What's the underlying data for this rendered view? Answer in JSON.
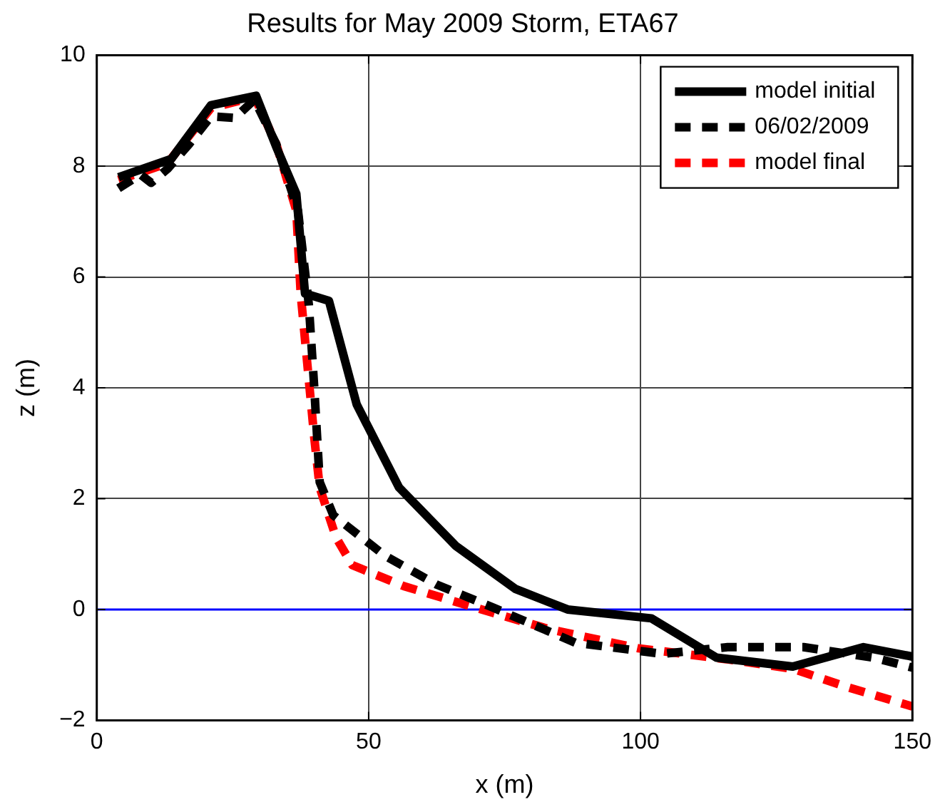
{
  "chart_data": {
    "type": "line",
    "title": "Results for May 2009 Storm, ETA67",
    "xlabel": "x (m)",
    "ylabel": "z (m)",
    "xlim": [
      0,
      150
    ],
    "xticks": [
      0,
      50,
      100,
      150
    ],
    "ylim": [
      -2,
      10
    ],
    "yticks": [
      -2,
      0,
      2,
      4,
      6,
      8,
      10
    ],
    "grid": true,
    "legend": "top right",
    "marker": "none",
    "ref_lines": [
      {
        "axis": "y",
        "value": 0,
        "color": "#0000ff"
      }
    ],
    "series": [
      {
        "name": "model initial",
        "color": "#000000",
        "line_style": "solid",
        "x": [
          4,
          13.7,
          21,
          29.3,
          33,
          36.7,
          38.3,
          42.7,
          47.8,
          55.6,
          66,
          77,
          86.6,
          102,
          114,
          128,
          141,
          150
        ],
        "values": [
          7.8,
          8.13,
          9.1,
          9.27,
          8.35,
          7.5,
          5.7,
          5.57,
          3.7,
          2.2,
          1.15,
          0.37,
          0,
          -0.16,
          -0.87,
          -1.03,
          -0.68,
          -0.85
        ]
      },
      {
        "name": "06/02/2009",
        "color": "#000000",
        "line_style": "dashed",
        "x": [
          4,
          8,
          10,
          13,
          17,
          21,
          25.4,
          29,
          33,
          37,
          39,
          40,
          41,
          43.5,
          53,
          62.5,
          73,
          88,
          104,
          116,
          130,
          143,
          150
        ],
        "values": [
          7.6,
          7.85,
          7.7,
          7.95,
          8.4,
          8.9,
          8.87,
          9.2,
          8.4,
          7.2,
          5.5,
          4,
          2.3,
          1.7,
          0.97,
          0.45,
          0.03,
          -0.6,
          -0.8,
          -0.68,
          -0.68,
          -0.87,
          -1.05
        ]
      },
      {
        "name": "model final",
        "color": "#ff0000",
        "line_style": "dashed",
        "x": [
          4,
          13,
          21,
          29,
          33,
          36.7,
          37.5,
          40,
          41,
          44,
          47,
          56.5,
          69,
          83,
          99.6,
          116,
          128,
          138,
          150
        ],
        "values": [
          7.75,
          8.05,
          9.05,
          9.25,
          8.4,
          7.2,
          5.7,
          3.1,
          2.2,
          1.3,
          0.8,
          0.42,
          0.05,
          -0.35,
          -0.7,
          -0.9,
          -1.07,
          -1.4,
          -1.75
        ]
      }
    ]
  }
}
